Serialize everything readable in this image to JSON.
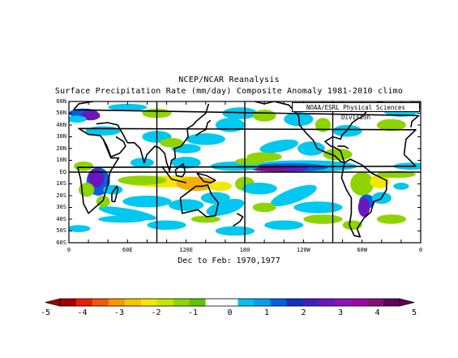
{
  "title": {
    "line1": "NCEP/NCAR Reanalysis",
    "line2": "Surface Precipitation Rate (mm/day) Composite Anomaly 1981-2010 climo"
  },
  "credit": "NOAA/ESRL Physical Sciences Division",
  "period": "Dec to Feb: 1970,1977",
  "map": {
    "lat_labels": [
      "60N",
      "50N",
      "40N",
      "30N",
      "20N",
      "10N",
      "EQ",
      "10S",
      "20S",
      "30S",
      "40S",
      "50S",
      "60S"
    ],
    "lon_labels": [
      "0",
      "60E",
      "120E",
      "180",
      "120W",
      "60W",
      "0"
    ]
  },
  "colorbar": {
    "tick_labels": [
      "-5",
      "-4",
      "-3",
      "-2",
      "-1",
      "0",
      "1",
      "2",
      "3",
      "4",
      "5"
    ],
    "colors": [
      "#a50000",
      "#e81f00",
      "#f25a00",
      "#f79600",
      "#f7c400",
      "#f5e800",
      "#c6e600",
      "#8ed400",
      "#5ec500",
      "#ffffff",
      "#ffffff",
      "#00c0f0",
      "#00a0f0",
      "#0060e0",
      "#1030c0",
      "#4020c0",
      "#6a16c0",
      "#8c10c0",
      "#a000a8",
      "#80107a",
      "#600058"
    ]
  },
  "colors": {
    "dry_strong": "#f2b200",
    "dry": "#f5e800",
    "dry_light": "#8ed400",
    "wet_light": "#00c8f0",
    "wet": "#0060e0",
    "wet_strong": "#6a16c0",
    "wet_max": "#80107a"
  }
}
